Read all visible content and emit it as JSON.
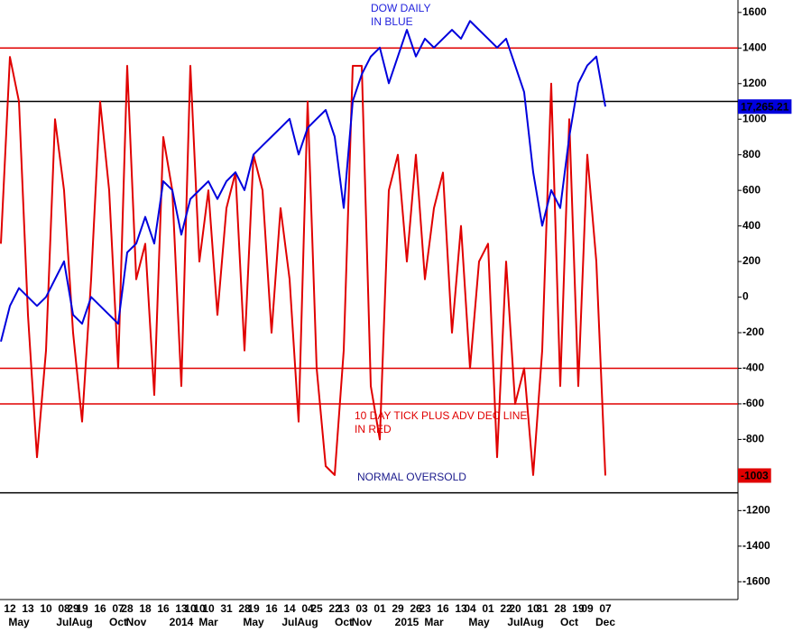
{
  "chart_data": {
    "type": "line",
    "day_labels": [
      null,
      "12",
      null,
      "13",
      null,
      "10",
      null,
      "08",
      "29",
      "19",
      null,
      "16",
      null,
      "07",
      "28",
      null,
      "18",
      null,
      "16",
      null,
      "13",
      "10",
      "10",
      "10",
      null,
      "31",
      null,
      "28",
      "19",
      null,
      "16",
      null,
      "14",
      null,
      "04",
      "25",
      null,
      "22",
      "13",
      null,
      "03",
      null,
      "01",
      null,
      "29",
      null,
      "26",
      "23",
      null,
      "16",
      null,
      "13",
      "04",
      null,
      "01",
      null,
      "22",
      "20",
      null,
      "10",
      "31",
      null,
      "28",
      null,
      "19",
      "09",
      null,
      "07"
    ],
    "categories": [
      null,
      null,
      "May",
      null,
      null,
      null,
      null,
      "Jul",
      null,
      "Aug",
      null,
      null,
      null,
      "Oct",
      null,
      "Nov",
      null,
      null,
      null,
      null,
      "2014",
      null,
      null,
      "Mar",
      null,
      null,
      null,
      null,
      "May",
      null,
      null,
      null,
      "Jul",
      null,
      "Aug",
      null,
      null,
      null,
      "Oct",
      null,
      "Nov",
      null,
      null,
      null,
      null,
      "2015",
      null,
      null,
      "Mar",
      null,
      null,
      null,
      null,
      "May",
      null,
      null,
      null,
      "Jul",
      null,
      "Aug",
      null,
      null,
      null,
      "Oct",
      null,
      null,
      null,
      "Dec"
    ],
    "series": [
      {
        "name": "10 DAY TICK PLUS ADV DEC LINE",
        "color": "#e00000",
        "values": [
          300,
          1350,
          1100,
          -100,
          -900,
          -300,
          1000,
          600,
          -200,
          -700,
          100,
          1100,
          600,
          -400,
          1300,
          100,
          300,
          -550,
          900,
          600,
          -500,
          1300,
          200,
          600,
          -100,
          500,
          700,
          -300,
          800,
          600,
          -200,
          500,
          100,
          -700,
          1100,
          -400,
          -950,
          -1000,
          -300,
          1300,
          1300,
          -500,
          -800,
          600,
          800,
          200,
          800,
          100,
          500,
          700,
          -200,
          400,
          -400,
          200,
          300,
          -900,
          200,
          -600,
          -400,
          -1000,
          -300,
          1200,
          -500,
          1000,
          -500,
          800,
          200,
          -1003
        ],
        "value_labels": [
          null,
          null,
          null,
          null,
          null,
          null,
          null,
          null,
          null,
          null,
          null,
          null,
          null,
          null,
          null,
          null,
          null,
          null,
          null,
          null,
          null,
          null,
          null,
          null,
          null,
          null,
          null,
          null,
          null,
          null,
          null,
          null,
          null,
          null,
          null,
          null,
          null,
          null,
          null,
          null,
          null,
          null,
          null,
          null,
          null,
          null,
          null,
          null,
          null,
          null,
          null,
          null,
          null,
          null,
          null,
          null,
          null,
          null,
          null,
          null,
          null,
          null,
          null,
          null,
          null,
          null,
          null,
          "-1003"
        ]
      },
      {
        "name": "DOW DAILY",
        "color": "#0000dd",
        "axis": "y2",
        "values": [
          14565,
          14974,
          15179,
          15077,
          14974,
          15077,
          15282,
          15486,
          14872,
          14770,
          15077,
          14974,
          14872,
          14770,
          15589,
          15691,
          15998,
          15691,
          16407,
          16305,
          15793,
          16203,
          16305,
          16407,
          16203,
          16407,
          16510,
          16305,
          16714,
          16817,
          16919,
          17021,
          17124,
          16714,
          17021,
          17124,
          17226,
          16919,
          16100,
          17329,
          17636,
          17840,
          17943,
          17533,
          17840,
          18147,
          17840,
          18045,
          17943,
          18045,
          18147,
          18045,
          18249,
          18147,
          18045,
          17943,
          18045,
          17738,
          17431,
          16510,
          15896,
          16305,
          16100,
          16919,
          17533,
          17738,
          17840,
          17265.21
        ],
        "value_labels": [
          null,
          null,
          null,
          null,
          null,
          null,
          null,
          null,
          null,
          null,
          null,
          null,
          null,
          null,
          null,
          null,
          null,
          null,
          null,
          null,
          null,
          null,
          null,
          null,
          null,
          null,
          null,
          null,
          null,
          null,
          null,
          null,
          null,
          null,
          null,
          null,
          null,
          null,
          null,
          null,
          null,
          null,
          null,
          null,
          null,
          null,
          null,
          null,
          null,
          null,
          null,
          null,
          null,
          null,
          null,
          null,
          null,
          null,
          null,
          null,
          null,
          null,
          null,
          null,
          null,
          null,
          null,
          "17,265.21"
        ]
      }
    ],
    "ylim": [
      -1700,
      1670
    ],
    "yticks": [
      -1600,
      -1400,
      -1200,
      -1000,
      -800,
      -600,
      -400,
      -200,
      0,
      200,
      400,
      600,
      800,
      1000,
      1200,
      1400,
      1600
    ],
    "y2lim": [
      11600,
      18490
    ],
    "hlines": [
      {
        "value": 1400,
        "color": "#e00000"
      },
      {
        "value": 1100,
        "color": "#000000"
      },
      {
        "value": -400,
        "color": "#e00000"
      },
      {
        "value": -600,
        "color": "#e00000"
      },
      {
        "value": -1100,
        "color": "#000000"
      }
    ],
    "annotations": [
      {
        "lines": [
          "DOW DAILY",
          "IN BLUE"
        ],
        "color": "#2222dd"
      },
      {
        "lines": [
          "10 DAY TICK PLUS ADV DEC LINE",
          "IN RED"
        ],
        "color": "#e00000"
      },
      {
        "lines": [
          "NORMAL OVERSOLD"
        ],
        "color": "#1a1a8c"
      }
    ]
  }
}
